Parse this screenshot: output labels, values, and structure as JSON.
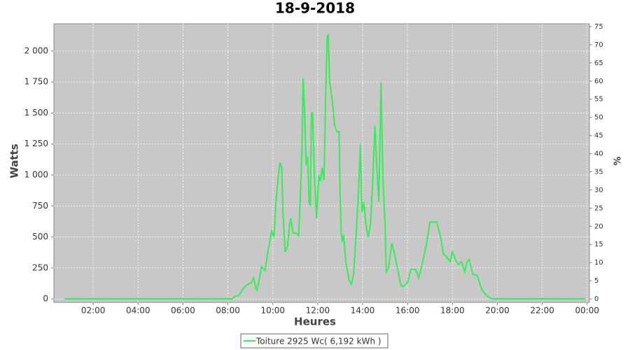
{
  "chart_data": {
    "type": "line",
    "title": "18-9-2018",
    "xlabel": "Heures",
    "ylabel": "Watts",
    "y2label": "%",
    "x": [
      0.7,
      8.2,
      8.3,
      8.5,
      8.7,
      8.9,
      9.05,
      9.15,
      9.25,
      9.3,
      9.5,
      9.65,
      9.8,
      9.95,
      10.05,
      10.15,
      10.25,
      10.32,
      10.4,
      10.45,
      10.55,
      10.65,
      10.75,
      10.8,
      10.9,
      11.05,
      11.15,
      11.2,
      11.3,
      11.35,
      11.42,
      11.48,
      11.55,
      11.62,
      11.67,
      11.72,
      11.77,
      11.85,
      11.95,
      12.05,
      12.12,
      12.2,
      12.28,
      12.35,
      12.42,
      12.47,
      12.53,
      12.65,
      12.75,
      12.85,
      12.95,
      13.0,
      13.05,
      13.1,
      13.15,
      13.25,
      13.4,
      13.5,
      13.6,
      13.7,
      13.8,
      13.9,
      13.97,
      14.05,
      14.15,
      14.25,
      14.35,
      14.45,
      14.55,
      14.62,
      14.72,
      14.82,
      14.9,
      15.0,
      15.05,
      15.15,
      15.3,
      15.4,
      15.55,
      15.7,
      15.8,
      16.0,
      16.15,
      16.35,
      16.5,
      16.65,
      16.85,
      17.0,
      17.3,
      17.5,
      17.6,
      17.75,
      17.9,
      18.0,
      18.1,
      18.25,
      18.4,
      18.55,
      18.65,
      18.75,
      18.9,
      19.1,
      19.3,
      19.5,
      19.65,
      19.8,
      23.9
    ],
    "series": [
      {
        "name": "Toiture 2925 Wc( 6,192 kWh )",
        "color": "#33ee55",
        "values": [
          0,
          0,
          20,
          30,
          90,
          120,
          130,
          170,
          80,
          70,
          260,
          230,
          400,
          550,
          500,
          800,
          1000,
          1100,
          1060,
          700,
          380,
          420,
          600,
          650,
          530,
          530,
          510,
          700,
          1200,
          1780,
          1500,
          1080,
          1150,
          780,
          750,
          1500,
          1500,
          1000,
          650,
          1000,
          950,
          1060,
          960,
          1600,
          2120,
          2130,
          1750,
          1600,
          1400,
          1350,
          1350,
          800,
          520,
          460,
          520,
          300,
          150,
          120,
          200,
          500,
          800,
          1250,
          700,
          780,
          600,
          500,
          600,
          950,
          1400,
          1100,
          780,
          1750,
          1000,
          600,
          220,
          250,
          450,
          380,
          250,
          110,
          100,
          130,
          240,
          240,
          170,
          280,
          450,
          620,
          620,
          480,
          360,
          340,
          300,
          380,
          330,
          280,
          300,
          220,
          300,
          320,
          200,
          190,
          80,
          30,
          10,
          0,
          0
        ]
      }
    ],
    "xlim": [
      0.25,
      24.1
    ],
    "xticks": [
      {
        "value": 2,
        "label": "02:00"
      },
      {
        "value": 4,
        "label": "04:00"
      },
      {
        "value": 6,
        "label": "06:00"
      },
      {
        "value": 8,
        "label": "08:00"
      },
      {
        "value": 10,
        "label": "10:00"
      },
      {
        "value": 12,
        "label": "12:00"
      },
      {
        "value": 14,
        "label": "14:00"
      },
      {
        "value": 16,
        "label": "16:00"
      },
      {
        "value": 18,
        "label": "18:00"
      },
      {
        "value": 20,
        "label": "20:00"
      },
      {
        "value": 22,
        "label": "22:00"
      },
      {
        "value": 24,
        "label": "00:00"
      }
    ],
    "ylim": [
      -28,
      2220
    ],
    "yticks": [
      0,
      250,
      500,
      750,
      {
        "value": 1000,
        "label": "1 000"
      },
      {
        "value": 1250,
        "label": "1 250"
      },
      {
        "value": 1500,
        "label": "1 500"
      },
      {
        "value": 1750,
        "label": "1 750"
      },
      {
        "value": 2000,
        "label": "2 000"
      }
    ],
    "y2lim": [
      -0.96,
      75.77
    ],
    "y2ticks": [
      0,
      5,
      10,
      15,
      20,
      25,
      30,
      35,
      40,
      45,
      50,
      55,
      60,
      65,
      70,
      75
    ],
    "grid": true
  }
}
